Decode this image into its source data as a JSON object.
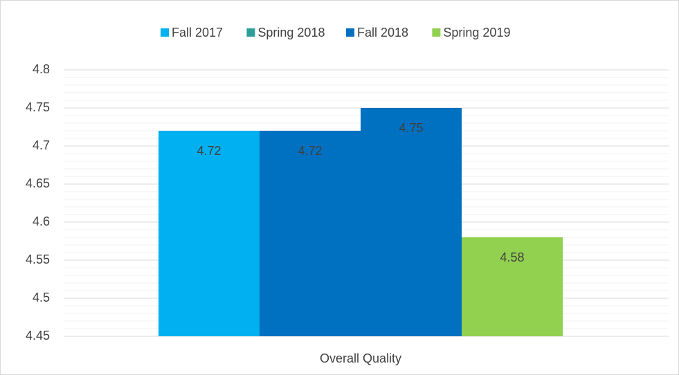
{
  "chart_data": {
    "type": "bar",
    "categories": [
      "Overall Quality"
    ],
    "series": [
      {
        "name": "Fall 2017",
        "color": "#00b0f0",
        "values": [
          4.72
        ]
      },
      {
        "name": "Spring 2018",
        "color": "#2e9e99",
        "bar_color": "#0070c0",
        "values": [
          4.72
        ]
      },
      {
        "name": "Fall 2018",
        "color": "#0070c0",
        "values": [
          4.75
        ]
      },
      {
        "name": "Spring 2019",
        "color": "#92d050",
        "values": [
          4.58
        ]
      }
    ],
    "ylim": [
      4.45,
      4.8
    ],
    "yticks": [
      4.45,
      4.5,
      4.55,
      4.6,
      4.65,
      4.7,
      4.75,
      4.8
    ],
    "grid": true,
    "minor_grid": true,
    "legend": "top",
    "data_labels": true
  }
}
